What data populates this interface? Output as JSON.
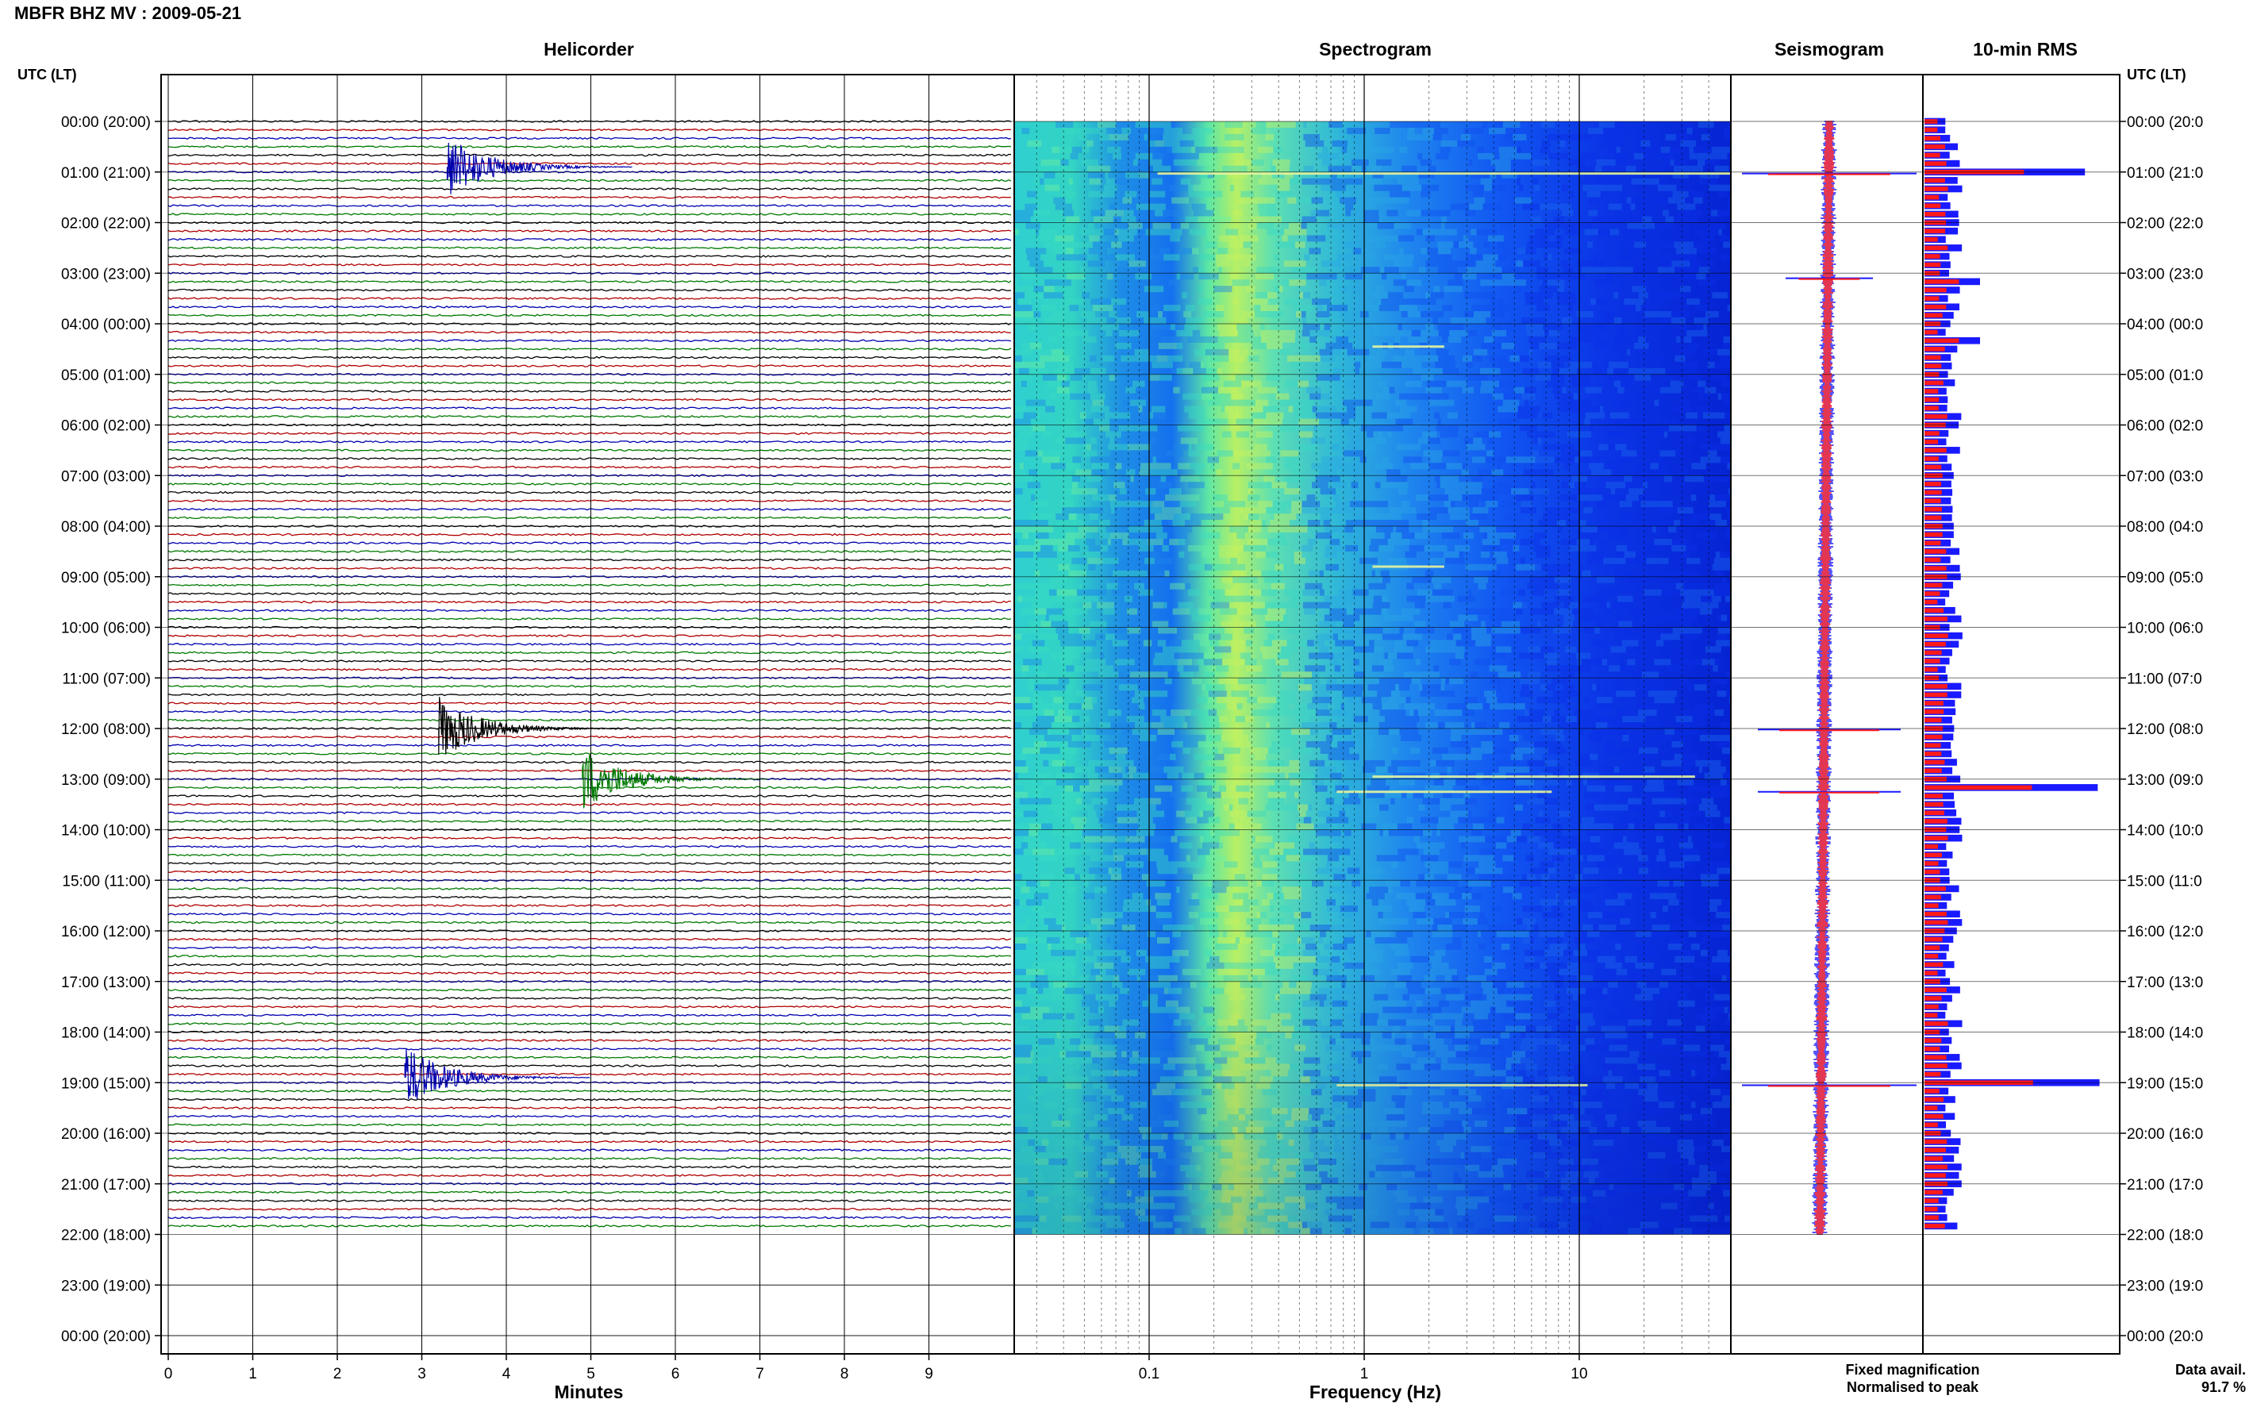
{
  "header": {
    "title": "MBFR BHZ MV : 2009-05-21"
  },
  "panels": {
    "helicorder": "Helicorder",
    "spectrogram": "Spectrogram",
    "seismogram": "Seismogram",
    "rms": "10-min RMS"
  },
  "axis_titles": {
    "left_time": "UTC (LT)",
    "right_time": "UTC (LT)",
    "helicorder_x": "Minutes",
    "spectrogram_x": "Frequency (Hz)"
  },
  "time_labels": [
    "00:00 (20:00)",
    "01:00 (21:00)",
    "02:00 (22:00)",
    "03:00 (23:00)",
    "04:00 (00:00)",
    "05:00 (01:00)",
    "06:00 (02:00)",
    "07:00 (03:00)",
    "08:00 (04:00)",
    "09:00 (05:00)",
    "10:00 (06:00)",
    "11:00 (07:00)",
    "12:00 (08:00)",
    "13:00 (09:00)",
    "14:00 (10:00)",
    "15:00 (11:00)",
    "16:00 (12:00)",
    "17:00 (13:00)",
    "18:00 (14:00)",
    "19:00 (15:00)",
    "20:00 (16:00)",
    "21:00 (17:00)",
    "22:00 (18:00)",
    "23:00 (19:00)",
    "00:00 (20:00)"
  ],
  "time_labels_right": [
    "00:00 (20:0",
    "01:00 (21:0",
    "02:00 (22:0",
    "03:00 (23:0",
    "04:00 (00:0",
    "05:00 (01:0",
    "06:00 (02:0",
    "07:00 (03:0",
    "08:00 (04:0",
    "09:00 (05:0",
    "10:00 (06:0",
    "11:00 (07:0",
    "12:00 (08:0",
    "13:00 (09:0",
    "14:00 (10:0",
    "15:00 (11:0",
    "16:00 (12:0",
    "17:00 (13:0",
    "18:00 (14:0",
    "19:00 (15:0",
    "20:00 (16:0",
    "21:00 (17:0",
    "22:00 (18:0",
    "23:00 (19:0",
    "00:00 (20:0"
  ],
  "helicorder_minute_ticks": [
    "0",
    "1",
    "2",
    "3",
    "4",
    "5",
    "6",
    "7",
    "8",
    "9"
  ],
  "spectrogram_freq_ticks": [
    "0.1",
    "1",
    "10"
  ],
  "legend": {
    "fixed": "Fixed magnification",
    "normalised": "Normalised to peak",
    "fixed_color": "#1a1aff",
    "normalised_color": "#ff1a1a"
  },
  "data_availability": {
    "label": "Data avail.",
    "value": "91.7 %"
  },
  "trace_colors": [
    "#000000",
    "#b00000",
    "#0000b0",
    "#007a00"
  ],
  "helicorder_events": [
    {
      "hour": 0.9,
      "minute": 3.3,
      "color": "#0000b0"
    },
    {
      "hour": 12.0,
      "minute": 3.2,
      "color": "#000000"
    },
    {
      "hour": 13.0,
      "minute": 4.9,
      "color": "#007a00"
    },
    {
      "hour": 18.9,
      "minute": 2.8,
      "color": "#0000b0"
    }
  ],
  "rms_peaks_hours": [
    1.0,
    13.2,
    19.0
  ]
}
